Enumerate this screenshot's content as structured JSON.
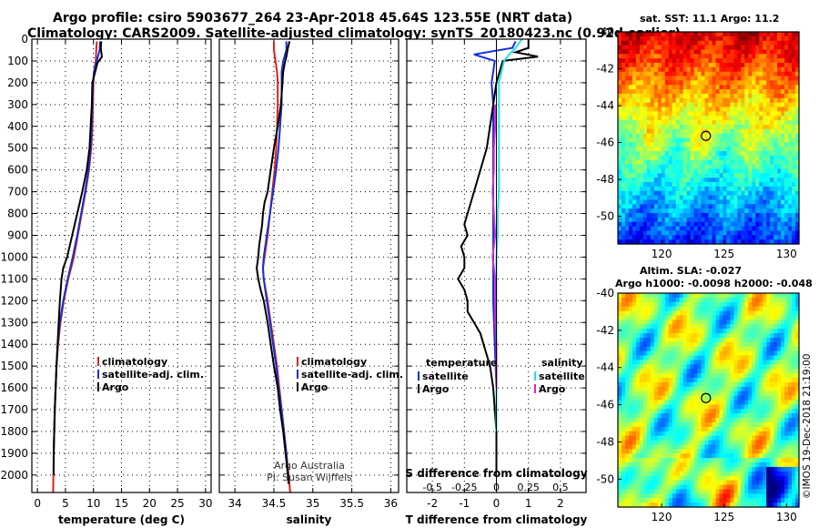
{
  "header": {
    "title_line1": "Argo profile: csiro 5903677_264 23-Apr-2018 45.64S 123.55E (NRT data)",
    "title_line2": "Climatology: CARS2009. Satellite-adjusted climatology: synTS_20180423.nc (0.92d earlier)"
  },
  "map_titles": {
    "sst": "sat. SST: 11.1 Argo: 11.2",
    "sla1": "Altim. SLA: -0.027",
    "sla2": "Argo h1000: -0.0098 h2000: -0.048"
  },
  "credit": "©IMOS 19-Dec-2018 21:19:00",
  "colors": {
    "climatology": "#e0201c",
    "satellite": "#1430d8",
    "argo": "#000000",
    "s_satellite": "#28e0e8",
    "s_argo": "#d828d0"
  },
  "chart_data": [
    {
      "type": "line",
      "id": "temperature",
      "xlabel": "temperature (deg C)",
      "xlim": [
        -1,
        31
      ],
      "xticks": [
        0,
        5,
        10,
        15,
        20,
        25,
        30
      ],
      "ylabel": "depth",
      "ylim": [
        2080,
        0
      ],
      "yticks": [
        0,
        100,
        200,
        300,
        400,
        500,
        600,
        700,
        800,
        900,
        1000,
        1100,
        1200,
        1300,
        1400,
        1500,
        1600,
        1700,
        1800,
        1900,
        2000
      ],
      "grid": true,
      "legend": [
        "climatology",
        "satellite-adj. clim.",
        "Argo"
      ],
      "series": [
        {
          "name": "climatology",
          "color": "#e0201c",
          "depth": [
            10,
            50,
            100,
            150,
            200,
            300,
            400,
            500,
            600,
            700,
            800,
            900,
            1000,
            1100,
            1200,
            1300,
            1400,
            1500,
            1700,
            1900,
            2080
          ],
          "values": [
            10.6,
            10.5,
            10.4,
            10.1,
            10.0,
            9.9,
            9.8,
            9.6,
            9.2,
            8.6,
            7.9,
            7.2,
            6.5,
            5.5,
            4.7,
            4.1,
            3.7,
            3.4,
            3.1,
            2.9,
            2.8
          ]
        },
        {
          "name": "satellite-adj. clim.",
          "color": "#1430d8",
          "depth": [
            10,
            50,
            100,
            150,
            200,
            300,
            400,
            500,
            600,
            700,
            800,
            900,
            1000,
            1100,
            1200,
            1300,
            1400,
            1500,
            1700,
            1900,
            1960
          ],
          "values": [
            11.2,
            11.1,
            10.6,
            10.1,
            9.9,
            9.8,
            9.7,
            9.5,
            9.1,
            8.5,
            7.8,
            7.1,
            6.3,
            5.4,
            4.6,
            4.0,
            3.6,
            3.4,
            3.1,
            2.9,
            2.9
          ]
        },
        {
          "name": "Argo",
          "color": "#000000",
          "depth": [
            10,
            40,
            80,
            110,
            150,
            180,
            200,
            300,
            400,
            500,
            600,
            700,
            800,
            900,
            1000,
            1050,
            1100,
            1200,
            1300,
            1400,
            1500,
            1700,
            1900,
            2000
          ],
          "values": [
            11.4,
            11.3,
            11.5,
            10.7,
            10.3,
            10.0,
            9.8,
            9.7,
            9.5,
            9.3,
            8.8,
            8.0,
            7.1,
            6.2,
            5.3,
            4.6,
            4.3,
            4.0,
            3.8,
            3.6,
            3.4,
            3.1,
            2.9,
            2.9
          ]
        }
      ]
    },
    {
      "type": "line",
      "id": "salinity",
      "xlabel": "salinity",
      "xlim": [
        33.8,
        36.1
      ],
      "xticks": [
        34,
        34.5,
        35,
        35.5,
        36
      ],
      "ylim": [
        2080,
        0
      ],
      "grid": true,
      "legend": [
        "climatology",
        "satellite-adj. clim.",
        "Argo"
      ],
      "annotations": [
        "Argo Australia",
        "PI: Susan Wijffels"
      ],
      "series": [
        {
          "name": "climatology",
          "color": "#e0201c",
          "depth": [
            10,
            50,
            100,
            150,
            200,
            300,
            400,
            500,
            600,
            700,
            800,
            900,
            1000,
            1050,
            1100,
            1200,
            1300,
            1400,
            1500,
            1600,
            1700,
            1800,
            1900,
            2000,
            2080
          ],
          "values": [
            34.5,
            34.5,
            34.52,
            34.54,
            34.55,
            34.55,
            34.54,
            34.53,
            34.51,
            34.48,
            34.45,
            34.42,
            34.38,
            34.36,
            34.37,
            34.42,
            34.46,
            34.5,
            34.54,
            34.57,
            34.6,
            34.63,
            34.66,
            34.69,
            34.71
          ]
        },
        {
          "name": "satellite-adj. clim.",
          "color": "#1430d8",
          "depth": [
            10,
            50,
            100,
            150,
            200,
            300,
            400,
            500,
            600,
            700,
            800,
            900,
            1000,
            1050,
            1100,
            1200,
            1300,
            1400,
            1500,
            1600,
            1700,
            1800,
            1900,
            2000,
            2040
          ],
          "values": [
            34.66,
            34.66,
            34.62,
            34.6,
            34.6,
            34.6,
            34.58,
            34.56,
            34.53,
            34.49,
            34.45,
            34.41,
            34.37,
            34.36,
            34.37,
            34.41,
            34.45,
            34.49,
            34.53,
            34.56,
            34.6,
            34.63,
            34.66,
            34.68,
            34.69
          ]
        },
        {
          "name": "Argo",
          "color": "#000000",
          "depth": [
            10,
            40,
            80,
            110,
            150,
            200,
            300,
            400,
            500,
            600,
            700,
            750,
            800,
            850,
            900,
            950,
            1000,
            1050,
            1100,
            1150,
            1200,
            1300,
            1400,
            1500,
            1600,
            1700,
            1800,
            1900,
            2000,
            2040
          ],
          "values": [
            34.7,
            34.68,
            34.66,
            34.64,
            34.62,
            34.61,
            34.59,
            34.55,
            34.5,
            34.46,
            34.42,
            34.38,
            34.36,
            34.35,
            34.33,
            34.31,
            34.3,
            34.28,
            34.3,
            34.33,
            34.37,
            34.42,
            34.46,
            34.5,
            34.55,
            34.58,
            34.62,
            34.65,
            34.68,
            34.69
          ]
        }
      ]
    },
    {
      "type": "line",
      "id": "differences",
      "xlabel": "T difference from climatology",
      "x2label": "S difference from climatology",
      "xlim": [
        -2.8,
        2.8
      ],
      "xticks": [
        -2,
        -1,
        0,
        1,
        2
      ],
      "x2lim": [
        -0.7,
        0.7
      ],
      "x2ticks": [
        -0.5,
        -0.25,
        0,
        0.25,
        0.5
      ],
      "x2ticklabels": [
        "-0.5",
        "-0.25",
        "0",
        "0.25",
        "0.5"
      ],
      "ylim": [
        2080,
        0
      ],
      "grid": true,
      "legend_titles": [
        "temperature",
        "salinity"
      ],
      "legend": [
        "satellite",
        "Argo",
        "satellite",
        "Argo"
      ],
      "series": [
        {
          "name": "T satellite",
          "color": "#1430d8",
          "axis": "T",
          "depth": [
            10,
            40,
            70,
            100,
            150,
            200,
            300,
            400,
            500,
            600,
            700,
            800,
            900,
            1000,
            1200,
            1400,
            1600,
            1800,
            1850
          ],
          "values": [
            0.6,
            0.5,
            -0.7,
            -0.05,
            -0.1,
            -0.15,
            -0.1,
            -0.1,
            -0.1,
            -0.1,
            -0.1,
            -0.1,
            -0.1,
            -0.1,
            -0.1,
            -0.05,
            0.0,
            0.0,
            0.0
          ]
        },
        {
          "name": "T Argo",
          "color": "#000000",
          "axis": "T",
          "depth": [
            0,
            40,
            60,
            80,
            100,
            150,
            200,
            300,
            400,
            500,
            600,
            700,
            800,
            850,
            900,
            950,
            1000,
            1050,
            1100,
            1150,
            1200,
            1250,
            1300,
            1350,
            1400,
            1500,
            1600,
            1700,
            1800,
            1900,
            1980
          ],
          "values": [
            1.0,
            1.0,
            0.6,
            1.3,
            0.2,
            0.1,
            0.0,
            -0.1,
            -0.2,
            -0.3,
            -0.5,
            -0.7,
            -0.9,
            -1.0,
            -0.9,
            -1.1,
            -1.0,
            -1.0,
            -1.2,
            -1.0,
            -0.9,
            -0.9,
            -0.7,
            -0.5,
            -0.4,
            -0.2,
            -0.1,
            -0.05,
            0.0,
            0.0,
            0.0
          ]
        },
        {
          "name": "S satellite",
          "color": "#28e0e8",
          "axis": "S",
          "depth": [
            0,
            40,
            70,
            100,
            150,
            200,
            300,
            400,
            500,
            600,
            700,
            800,
            900,
            1000,
            1200,
            1400,
            1600,
            1800
          ],
          "values": [
            0.2,
            0.15,
            0.1,
            0.06,
            0.04,
            0.02,
            0.02,
            0.02,
            0.02,
            0.02,
            0.02,
            0.01,
            0.01,
            0.0,
            0.0,
            0.0,
            0.0,
            0.0
          ]
        },
        {
          "name": "S Argo",
          "color": "#d828d0",
          "axis": "S",
          "depth": [
            300,
            400,
            500,
            600,
            700,
            800,
            900,
            950,
            1000,
            1100,
            1200,
            1300,
            1400,
            1500,
            1600
          ],
          "values": [
            -0.01,
            -0.01,
            -0.02,
            -0.02,
            -0.03,
            -0.02,
            -0.01,
            -0.02,
            -0.03,
            -0.01,
            -0.01,
            -0.01,
            0.0,
            0.0,
            0.0
          ]
        }
      ]
    },
    {
      "type": "heatmap",
      "id": "sst-map",
      "xlim": [
        116.5,
        131
      ],
      "xticks": [
        120,
        125,
        130
      ],
      "ylim": [
        -51.5,
        -40
      ],
      "yticks": [
        -40,
        -42,
        -44,
        -46,
        -48,
        -50
      ],
      "marker": {
        "lon": 123.55,
        "lat": -45.64
      }
    },
    {
      "type": "heatmap",
      "id": "sla-map",
      "xlim": [
        116.5,
        131
      ],
      "xticks": [
        120,
        125,
        130
      ],
      "ylim": [
        -51.5,
        -40
      ],
      "yticks": [
        -40,
        -42,
        -44,
        -46,
        -48,
        -50
      ],
      "marker": {
        "lon": 123.55,
        "lat": -45.64
      }
    }
  ]
}
